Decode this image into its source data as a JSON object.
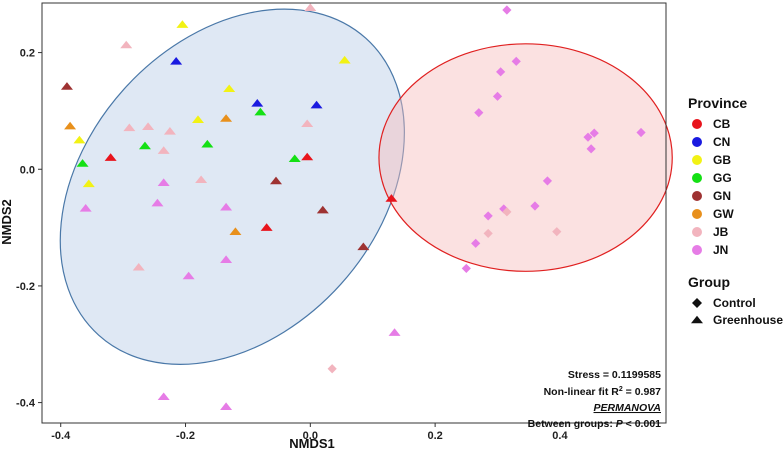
{
  "chart_data": {
    "type": "scatter",
    "xlabel": "NMDS1",
    "ylabel": "NMDS2",
    "xlim": [
      -0.43,
      0.57
    ],
    "ylim": [
      -0.435,
      0.285
    ],
    "x_ticks": [
      "-0.4",
      "-0.2",
      "0.0",
      "0.2",
      "0.4"
    ],
    "x_tick_values": [
      -0.4,
      -0.2,
      0.0,
      0.2,
      0.4
    ],
    "y_ticks": [
      "0.2",
      "0.0",
      "-0.2",
      "-0.4"
    ],
    "y_tick_values": [
      0.2,
      0.0,
      -0.2,
      -0.4
    ],
    "grid": false,
    "legend_position": "right",
    "province_legend": {
      "title": "Province",
      "items": [
        {
          "label": "CB",
          "color": "#e8141c"
        },
        {
          "label": "CN",
          "color": "#1a1ae0"
        },
        {
          "label": "GB",
          "color": "#f2f214"
        },
        {
          "label": "GG",
          "color": "#14e014"
        },
        {
          "label": "GN",
          "color": "#9e3232"
        },
        {
          "label": "GW",
          "color": "#e8901c"
        },
        {
          "label": "JB",
          "color": "#f2b4be"
        },
        {
          "label": "JN",
          "color": "#e67ce6"
        }
      ]
    },
    "group_legend": {
      "title": "Group",
      "items": [
        {
          "label": "Control",
          "shape": "diamond"
        },
        {
          "label": "Greenhouse",
          "shape": "triangle"
        }
      ]
    },
    "ellipses": [
      {
        "group": "Greenhouse",
        "cx": -0.125,
        "cy": -0.03,
        "rx": 0.32,
        "ry": 0.25,
        "angle_deg": -48,
        "fill": "#b7cde6",
        "stroke": "#4a78a8"
      },
      {
        "group": "Control",
        "cx": 0.345,
        "cy": 0.02,
        "rx": 0.235,
        "ry": 0.195,
        "angle_deg": 0,
        "fill": "#f7bcbc",
        "stroke": "#e02020"
      }
    ],
    "series": [
      {
        "shape": "triangle",
        "province": "CB",
        "points": [
          [
            -0.32,
            0.02
          ],
          [
            -0.005,
            0.021
          ],
          [
            -0.07,
            -0.1
          ],
          [
            0.13,
            -0.05
          ]
        ]
      },
      {
        "shape": "triangle",
        "province": "CN",
        "points": [
          [
            -0.215,
            0.185
          ],
          [
            -0.085,
            0.113
          ],
          [
            0.01,
            0.11
          ]
        ]
      },
      {
        "shape": "triangle",
        "province": "GB",
        "points": [
          [
            -0.205,
            0.248
          ],
          [
            -0.13,
            0.138
          ],
          [
            -0.18,
            0.085
          ],
          [
            -0.37,
            0.05
          ],
          [
            -0.355,
            -0.025
          ],
          [
            0.055,
            0.187
          ]
        ]
      },
      {
        "shape": "triangle",
        "province": "GG",
        "points": [
          [
            -0.265,
            0.04
          ],
          [
            -0.365,
            0.01
          ],
          [
            -0.165,
            0.043
          ],
          [
            -0.08,
            0.098
          ],
          [
            -0.025,
            0.018
          ]
        ]
      },
      {
        "shape": "triangle",
        "province": "GN",
        "points": [
          [
            -0.39,
            0.142
          ],
          [
            -0.055,
            -0.02
          ],
          [
            0.02,
            -0.07
          ],
          [
            0.085,
            -0.133
          ]
        ]
      },
      {
        "shape": "triangle",
        "province": "GW",
        "points": [
          [
            -0.385,
            0.074
          ],
          [
            -0.135,
            0.087
          ],
          [
            -0.12,
            -0.107
          ]
        ]
      },
      {
        "shape": "triangle",
        "province": "JB",
        "points": [
          [
            -0.295,
            0.213
          ],
          [
            -0.29,
            0.071
          ],
          [
            -0.26,
            0.073
          ],
          [
            -0.225,
            0.065
          ],
          [
            -0.235,
            0.032
          ],
          [
            -0.005,
            0.078
          ],
          [
            0.0,
            0.277
          ],
          [
            -0.275,
            -0.168
          ],
          [
            -0.175,
            -0.018
          ]
        ]
      },
      {
        "shape": "triangle",
        "province": "JN",
        "points": [
          [
            -0.36,
            -0.067
          ],
          [
            -0.235,
            -0.023
          ],
          [
            -0.245,
            -0.058
          ],
          [
            -0.135,
            -0.065
          ],
          [
            -0.195,
            -0.183
          ],
          [
            -0.135,
            -0.155
          ],
          [
            -0.235,
            -0.39
          ],
          [
            -0.135,
            -0.407
          ],
          [
            0.135,
            -0.28
          ]
        ]
      },
      {
        "shape": "diamond",
        "province": "JN",
        "points": [
          [
            0.315,
            0.273
          ],
          [
            0.33,
            0.185
          ],
          [
            0.305,
            0.167
          ],
          [
            0.3,
            0.125
          ],
          [
            0.27,
            0.097
          ],
          [
            0.38,
            -0.02
          ],
          [
            0.445,
            0.055
          ],
          [
            0.455,
            0.062
          ],
          [
            0.45,
            0.035
          ],
          [
            0.53,
            0.063
          ],
          [
            0.36,
            -0.063
          ],
          [
            0.31,
            -0.068
          ],
          [
            0.285,
            -0.08
          ],
          [
            0.265,
            -0.127
          ],
          [
            0.25,
            -0.17
          ]
        ]
      },
      {
        "shape": "diamond",
        "province": "JB",
        "points": [
          [
            0.395,
            -0.107
          ],
          [
            0.285,
            -0.11
          ],
          [
            0.315,
            -0.073
          ],
          [
            0.035,
            -0.342
          ]
        ]
      }
    ],
    "annotations": {
      "stress": "Stress = 0.1199585",
      "fit_prefix": "Non-linear  fit R",
      "fit_sup": "2",
      "fit_suffix": " = 0.987",
      "permanova": "PERMANOVA",
      "between_prefix": "Between groups: ",
      "between_p": "P",
      "between_suffix": " < 0.001"
    }
  }
}
